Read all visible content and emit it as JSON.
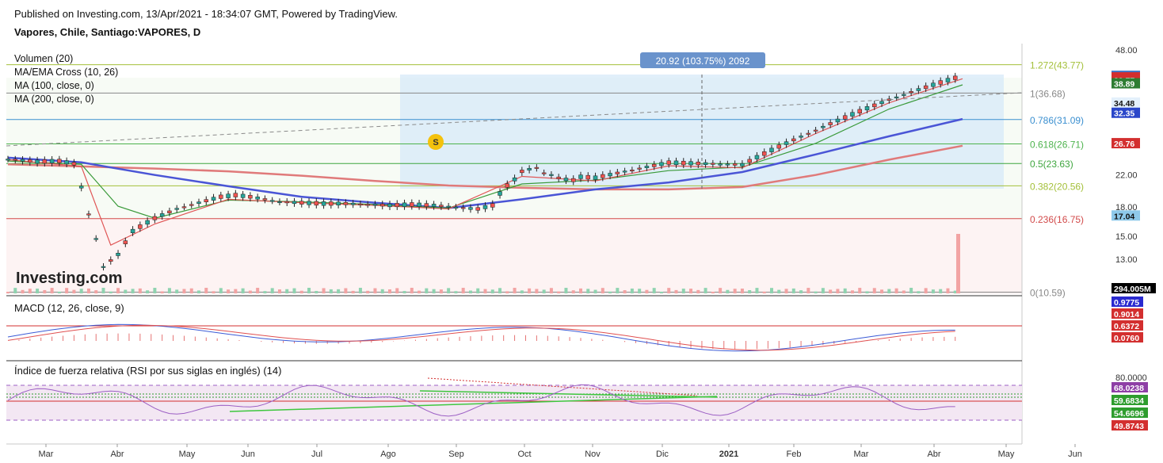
{
  "header": {
    "published": "Published on Investing.com, 13/Apr/2021 - 18:34:07 GMT, Powered by TradingView.",
    "symbol": "Vapores, Chile, Santiago:VAPORES, D"
  },
  "watermark": "Investing.com",
  "chart_data": [
    {
      "type": "line",
      "panel": "price",
      "x_ticks": [
        "Mar",
        "Abr",
        "May",
        "Jun",
        "Jul",
        "Ago",
        "Sep",
        "Oct",
        "Nov",
        "Dic",
        "2021",
        "Feb",
        "Mar",
        "Abr",
        "May",
        "Jun"
      ],
      "y_ticks": [
        48.0,
        40.0,
        34.0,
        28.0,
        22.0,
        18.0,
        15.0,
        13.0
      ],
      "y_tick_labels": [
        "48.00",
        "",
        "",
        "",
        "22.00",
        "18.00",
        "15.00",
        "13.00"
      ],
      "legend": [
        "Volumen (20)",
        "MA/EMA Cross (10, 26)",
        "MA (100, close, 0)",
        "MA (200, close, 0)"
      ],
      "close": {
        "x": [
          0,
          8,
          14,
          18,
          22,
          26,
          30,
          34,
          40,
          46,
          52,
          58,
          62,
          66,
          70,
          74,
          80,
          86,
          92,
          98,
          104,
          110,
          116,
          122,
          124,
          128,
          130,
          132,
          134,
          136,
          138,
          140,
          142,
          144,
          146,
          148,
          150,
          152,
          154
        ],
        "y": [
          24.3,
          23.9,
          24.0,
          23.6,
          17.2,
          12.4,
          13.4,
          15.5,
          16.8,
          17.8,
          18.5,
          19.2,
          19.4,
          19.2,
          18.9,
          18.6,
          18.5,
          18.4,
          18.4,
          18.3,
          18.2,
          18.3,
          18.2,
          18.0,
          17.9,
          17.8,
          18.0,
          18.2,
          19.6,
          20.6,
          21.4,
          22.5,
          22.8,
          23.0,
          22.3,
          22.0,
          21.6,
          21.4,
          21.3
        ]
      },
      "ma_cross_fast": {
        "x": [
          0,
          20,
          28,
          40,
          60,
          80,
          100,
          120,
          140,
          160,
          180,
          200,
          220,
          240,
          260
        ],
        "y": [
          24.2,
          23.2,
          14.2,
          16.2,
          18.9,
          18.5,
          18.2,
          17.8,
          21.8,
          21.2,
          23.3,
          23.0,
          28.5,
          34.5,
          40.1
        ]
      },
      "ma_cross_slow": {
        "x": [
          0,
          20,
          30,
          40,
          60,
          80,
          100,
          120,
          140,
          160,
          180,
          200,
          220,
          240,
          260
        ],
        "y": [
          24.0,
          23.5,
          18.1,
          16.8,
          18.8,
          18.6,
          18.3,
          17.9,
          20.8,
          21.3,
          22.6,
          23.1,
          26.8,
          33.2,
          38.6
        ]
      },
      "ma100": {
        "x": [
          0,
          20,
          40,
          60,
          80,
          100,
          120,
          140,
          160,
          180,
          200,
          220,
          240,
          260
        ],
        "y": [
          24.5,
          23.8,
          22.0,
          20.5,
          19.2,
          18.5,
          17.9,
          18.9,
          20.1,
          21.0,
          22.4,
          25.0,
          28.0,
          31.2
        ]
      },
      "ma200": {
        "x": [
          0,
          20,
          40,
          60,
          80,
          100,
          120,
          140,
          160,
          180,
          200,
          220,
          240,
          260
        ],
        "y": [
          23.5,
          23.2,
          22.9,
          22.5,
          21.9,
          21.2,
          20.6,
          20.3,
          20.1,
          20.1,
          20.4,
          22.0,
          24.2,
          26.4
        ]
      },
      "measure_label": "20.92 (103.75%) 2092",
      "fib_levels": [
        {
          "label": "1.272(43.77)",
          "value": 43.77,
          "color": "#a4c03a"
        },
        {
          "label": "1(36.68)",
          "value": 36.68,
          "color": "#888888"
        },
        {
          "label": "0.786(31.09)",
          "value": 31.09,
          "color": "#3a8fd0"
        },
        {
          "label": "0.618(26.71)",
          "value": 26.71,
          "color": "#4db34d"
        },
        {
          "label": "0.5(23.63)",
          "value": 23.63,
          "color": "#3fa63f"
        },
        {
          "label": "0.382(20.56)",
          "value": 20.56,
          "color": "#a4c03a"
        },
        {
          "label": "0.236(16.75)",
          "value": 16.75,
          "color": "#d24a4a"
        },
        {
          "label": "0(10.59)",
          "value": 10.59,
          "color": "#888888"
        }
      ],
      "price_badges": [
        {
          "text": "40.74",
          "bg": "#3a74c9",
          "value": 40.74
        },
        {
          "text": "40.35",
          "bg": "#d32f2f",
          "value": 40.35
        },
        {
          "text": "39.77",
          "bg": "#d32f2f",
          "value": 39.77
        },
        {
          "text": "38.89",
          "bg": "#2e7d32",
          "value": 38.89
        },
        {
          "text": "34.48",
          "bg": "#e3f0fb",
          "value": 34.48
        },
        {
          "text": "32.35",
          "bg": "#2a46c9",
          "value": 32.35
        },
        {
          "text": "26.76",
          "bg": "#d32f2f",
          "value": 26.76
        },
        {
          "text": "17.04",
          "bg": "#8ec9ea",
          "value": 17.04
        },
        {
          "text": "294.005M",
          "bg": "#000000"
        }
      ],
      "volume_spike": "294.005M"
    },
    {
      "type": "line",
      "panel": "macd",
      "title": "MACD (12, 26, close, 9)",
      "badges": [
        {
          "text": "0.9775",
          "bg": "#2a2ad0"
        },
        {
          "text": "0.9014",
          "bg": "#d32f2f"
        },
        {
          "text": "0.6372",
          "bg": "#d32f2f"
        },
        {
          "text": "0.0760",
          "bg": "#d32f2f"
        }
      ]
    },
    {
      "type": "line",
      "panel": "rsi",
      "title": "Índice de fuerza relativa (RSI por sus siglas en inglés) (14)",
      "y_ticks": [
        80.0
      ],
      "y_tick_labels": [
        "80.0000"
      ],
      "badges": [
        {
          "text": "68.0238",
          "bg": "#8e3fa6"
        },
        {
          "text": "59.6834",
          "bg": "#2e9d2e"
        },
        {
          "text": "54.6696",
          "bg": "#2e9d2e"
        },
        {
          "text": "49.8743",
          "bg": "#d32f2f"
        }
      ]
    }
  ],
  "colors": {
    "up": "#26a69a",
    "down": "#ef5350",
    "ma100": "#4a55d6",
    "ma200": "#e07a7a",
    "fast": "#e05555",
    "slow": "#3a9a3a",
    "rsi": "#9c5fc4",
    "range_bg": "#d7e9f8"
  }
}
